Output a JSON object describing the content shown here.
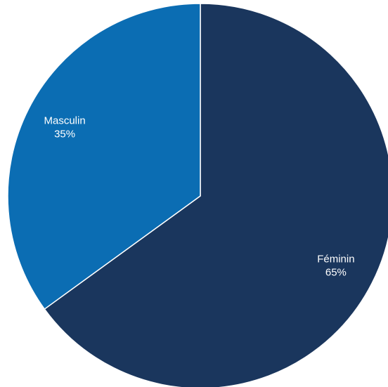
{
  "chart_data": {
    "type": "pie",
    "categories": [
      "Féminin",
      "Masculin"
    ],
    "values": [
      65,
      35
    ],
    "value_labels": [
      "65%",
      "35%"
    ],
    "colors": [
      "#1a365d",
      "#0b6db3"
    ],
    "start": "12 o'clock",
    "direction": "clockwise",
    "labels_inside_slices": true,
    "title": "",
    "legend": "none"
  }
}
